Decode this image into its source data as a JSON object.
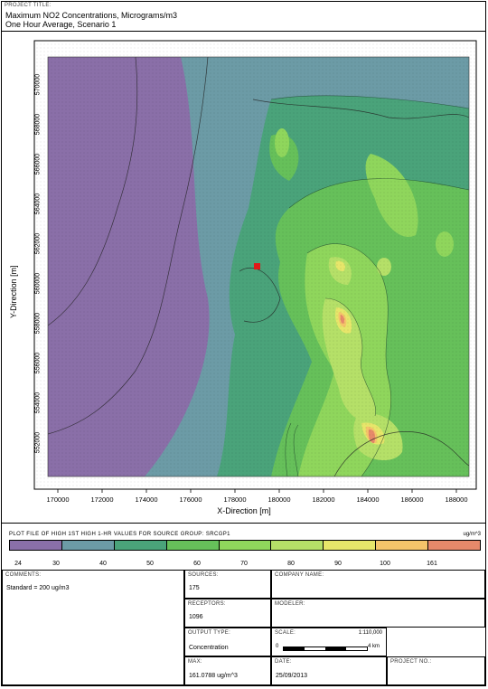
{
  "header": {
    "label": "PROJECT TITLE:",
    "title_line1": "Maximum NO2 Concentrations, Micrograms/m3",
    "title_line2": "One Hour Average, Scenario 1"
  },
  "map": {
    "xlabel": "X-Direction [m]",
    "ylabel": "Y-Direction [m]",
    "x_ticks": [
      "170000",
      "172000",
      "174000",
      "176000",
      "178000",
      "180000",
      "182000",
      "184000",
      "186000",
      "188000"
    ],
    "y_ticks": [
      "570000",
      "568000",
      "566000",
      "564000",
      "562000",
      "560000",
      "558000",
      "556000",
      "554000",
      "552000"
    ],
    "background_color": "#8a6fa8",
    "land_color": "#4aa37a",
    "source_marker_color": "#e01818"
  },
  "legend": {
    "title": "PLOT FILE OF HIGH 1ST HIGH 1-HR VALUES FOR SOURCE GROUP: SRCGP1",
    "units": "ug/m^3",
    "ticks": [
      "24",
      "30",
      "40",
      "50",
      "60",
      "70",
      "80",
      "90",
      "100",
      "161"
    ],
    "colors": [
      "#8a6fa8",
      "#6c9ba6",
      "#4aa37a",
      "#66c05a",
      "#8fd65c",
      "#b5e068",
      "#e7e66a",
      "#f4c46a",
      "#e6896a"
    ]
  },
  "info": {
    "comments_label": "COMMENTS:",
    "comments_value": "Standard = 200 ug/m3",
    "sources_label": "SOURCES:",
    "sources_value": "175",
    "company_label": "COMPANY NAME:",
    "company_value": "",
    "receptors_label": "RECEPTORS:",
    "receptors_value": "1096",
    "modeler_label": "MODELER:",
    "modeler_value": "",
    "output_label": "OUTPUT TYPE:",
    "output_value": "Concentration",
    "scale_label": "SCALE:",
    "scale_ratio": "1:110,000",
    "scale_zero": "0",
    "scale_km": "4 km",
    "max_label": "MAX:",
    "max_value": "161.0788 ug/m^3",
    "date_label": "DATE:",
    "date_value": "25/09/2013",
    "project_label": "PROJECT NO.:",
    "project_value": ""
  }
}
